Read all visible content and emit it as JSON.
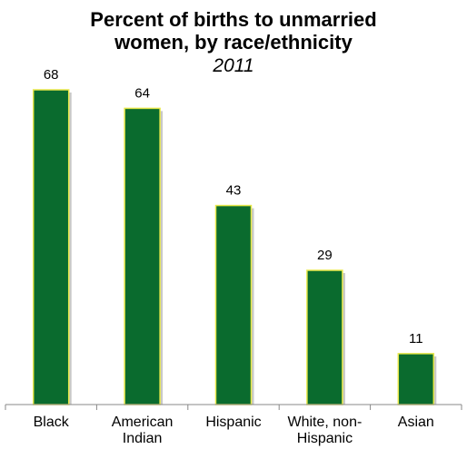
{
  "chart_data": {
    "type": "bar",
    "title": [
      "Percent of births to unmarried",
      "women, by race/ethnicity"
    ],
    "subtitle": "2011",
    "categories": [
      [
        "Black"
      ],
      [
        "American",
        "Indian"
      ],
      [
        "Hispanic"
      ],
      [
        "White, non-",
        "Hispanic"
      ],
      [
        "Asian"
      ]
    ],
    "values": [
      68,
      64,
      43,
      29,
      11
    ],
    "data_labels": [
      "68",
      "64",
      "43",
      "29",
      "11"
    ],
    "ylim": [
      0,
      75
    ],
    "grid": false,
    "legend": "none",
    "colors": {
      "bar_fill": "#0a6b2e",
      "bar_stroke": "#e8e84a",
      "axis": "#888888",
      "text": "#000000"
    }
  }
}
